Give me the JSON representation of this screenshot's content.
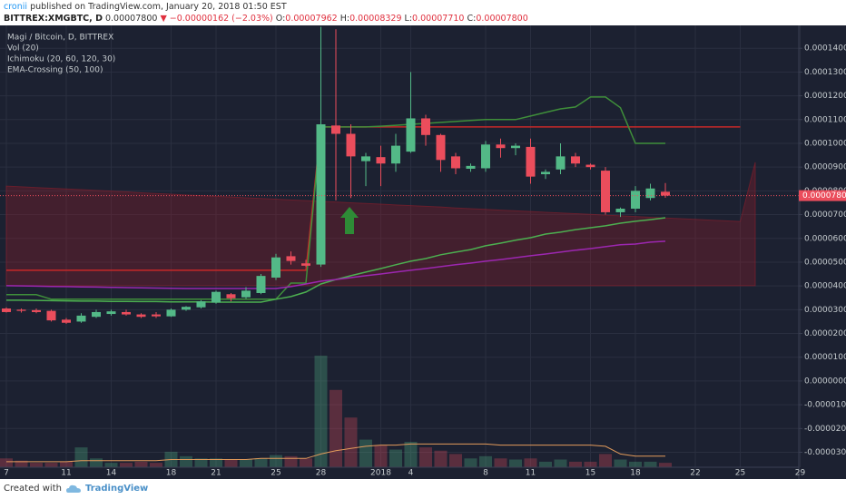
{
  "header": {
    "author": "cronii",
    "published": "published on TradingView.com, January 20, 2018 01:50 EST",
    "symbol": "BITTREX:XMGBTC, D",
    "last": "0.00007800",
    "arrow": "▼",
    "change": "−0.00000162 (−2.03%)",
    "ohlc": [
      {
        "label": "O:",
        "value": "0.00007962"
      },
      {
        "label": "H:",
        "value": "0.00008329"
      },
      {
        "label": "L:",
        "value": "0.00007710"
      },
      {
        "label": "C:",
        "value": "0.00007800"
      }
    ]
  },
  "chart_data": {
    "type": "candlestick",
    "title": "Magi / Bitcoin, D, BITTREX",
    "indicators": [
      "Vol (20)",
      "Ichimoku (20, 60, 120, 30)",
      "EMA-Crossing (50, 100)"
    ],
    "categories": [
      "7",
      null,
      null,
      null,
      "11",
      null,
      null,
      "14",
      null,
      null,
      null,
      "18",
      null,
      null,
      "21",
      null,
      null,
      null,
      "25",
      null,
      null,
      "28",
      null,
      null,
      null,
      "2018",
      null,
      "4",
      null,
      null,
      null,
      null,
      "8",
      null,
      null,
      "11",
      null,
      null,
      null,
      "15",
      null,
      null,
      "18",
      null,
      null,
      null,
      "22",
      null,
      null,
      "25",
      null,
      null,
      null,
      "29"
    ],
    "open": [
      3.05e-05,
      3e-05,
      2.98e-05,
      2.95e-05,
      2.58e-05,
      2.5e-05,
      2.7e-05,
      2.82e-05,
      2.9e-05,
      2.8e-05,
      2.8e-05,
      2.72e-05,
      3e-05,
      3.1e-05,
      3.3e-05,
      3.65e-05,
      3.52e-05,
      3.7e-05,
      4.35e-05,
      5.25e-05,
      4.95e-05,
      4.9e-05,
      0.0001075,
      0.000104,
      9.25e-05,
      9.42e-05,
      9.15e-05,
      9.65e-05,
      0.0001105,
      0.0001035,
      9.45e-05,
      8.93e-05,
      8.95e-05,
      9.95e-05,
      9.8e-05,
      9.85e-05,
      8.7e-05,
      8.9e-05,
      9.45e-05,
      9.1e-05,
      8.85e-05,
      7.1e-05,
      7.25e-05,
      7.7e-05,
      7.962e-05,
      null,
      null,
      null,
      null,
      null,
      null,
      null,
      null,
      null
    ],
    "high": [
      3.1e-05,
      3.05e-05,
      3.05e-05,
      3e-05,
      2.65e-05,
      2.85e-05,
      3e-05,
      3e-05,
      3e-05,
      2.85e-05,
      2.9e-05,
      3.05e-05,
      3.15e-05,
      3.4e-05,
      3.8e-05,
      3.7e-05,
      3.95e-05,
      4.5e-05,
      5.35e-05,
      5.45e-05,
      5.1e-05,
      0.000149,
      0.000148,
      0.000108,
      9.6e-05,
      9.9e-05,
      0.000104,
      0.00013,
      0.000112,
      0.000104,
      9.6e-05,
      9.15e-05,
      0.000101,
      0.000102,
      0.0001,
      0.000102,
      8.9e-05,
      0.0001,
      9.6e-05,
      9.15e-05,
      9e-05,
      7.3e-05,
      8.2e-05,
      8.3e-05,
      8.329e-05,
      null,
      null,
      null,
      null,
      null,
      null,
      null,
      null,
      null
    ],
    "low": [
      2.88e-05,
      2.88e-05,
      2.85e-05,
      2.5e-05,
      2.4e-05,
      2.45e-05,
      2.65e-05,
      2.75e-05,
      2.75e-05,
      2.65e-05,
      2.65e-05,
      2.7e-05,
      2.95e-05,
      3.05e-05,
      3.25e-05,
      3.35e-05,
      3.45e-05,
      3.65e-05,
      4.25e-05,
      4.9e-05,
      4.8e-05,
      4.8e-05,
      7.6e-05,
      7.7e-05,
      8.2e-05,
      8.2e-05,
      8.8e-05,
      9.6e-05,
      9.9e-05,
      8.8e-05,
      8.7e-05,
      8.8e-05,
      8.8e-05,
      9.4e-05,
      9.5e-05,
      8.3e-05,
      8.5e-05,
      8.7e-05,
      9e-05,
      8.9e-05,
      7e-05,
      6.9e-05,
      7.1e-05,
      7.6e-05,
      7.71e-05,
      null,
      null,
      null,
      null,
      null,
      null,
      null,
      null,
      null
    ],
    "close": [
      2.9e-05,
      2.95e-05,
      2.9e-05,
      2.55e-05,
      2.45e-05,
      2.75e-05,
      2.9e-05,
      2.93e-05,
      2.8e-05,
      2.7e-05,
      2.72e-05,
      3e-05,
      3.12e-05,
      3.35e-05,
      3.75e-05,
      3.48e-05,
      3.8e-05,
      4.42e-05,
      5.2e-05,
      5.05e-05,
      4.85e-05,
      0.000108,
      0.000104,
      9.45e-05,
      9.45e-05,
      9.15e-05,
      9.9e-05,
      0.0001105,
      0.0001035,
      9.3e-05,
      8.95e-05,
      9.05e-05,
      9.95e-05,
      9.8e-05,
      9.9e-05,
      8.6e-05,
      8.8e-05,
      9.45e-05,
      9.15e-05,
      9e-05,
      7.1e-05,
      7.25e-05,
      8e-05,
      8.1e-05,
      7.8e-05,
      null,
      null,
      null,
      null,
      null,
      null,
      null,
      null,
      null
    ],
    "up_color": "#53b987",
    "down_color": "#eb4d5c",
    "lines": [
      {
        "color": "#c62828",
        "values": [
          4.66e-05,
          4.66e-05,
          4.66e-05,
          4.66e-05,
          4.66e-05,
          4.66e-05,
          4.66e-05,
          4.66e-05,
          4.66e-05,
          4.66e-05,
          4.66e-05,
          4.66e-05,
          4.66e-05,
          4.66e-05,
          4.66e-05,
          4.66e-05,
          4.66e-05,
          4.66e-05,
          4.66e-05,
          4.66e-05,
          4.66e-05,
          0.0001069,
          0.0001069,
          0.0001069,
          0.0001069,
          0.0001069,
          0.0001069,
          0.0001069,
          0.0001069,
          0.0001069,
          0.0001069,
          0.0001069,
          0.0001069,
          0.0001069,
          0.0001069,
          0.0001069,
          0.0001069,
          0.0001069,
          0.0001069,
          0.0001069,
          0.0001069,
          0.0001069,
          0.0001069,
          0.0001069,
          0.0001069,
          0.0001069,
          0.0001069,
          0.0001069,
          0.0001069,
          0.0001069,
          null,
          null,
          null,
          null
        ]
      },
      {
        "color": "#3f8f3a",
        "values": [
          3.63e-05,
          3.63e-05,
          3.63e-05,
          3.44e-05,
          3.44e-05,
          3.44e-05,
          3.44e-05,
          3.44e-05,
          3.44e-05,
          3.44e-05,
          3.44e-05,
          3.44e-05,
          3.44e-05,
          3.44e-05,
          3.44e-05,
          3.44e-05,
          3.44e-05,
          3.44e-05,
          3.44e-05,
          4.12e-05,
          4.12e-05,
          0.0001069,
          0.0001069,
          0.0001069,
          0.0001069,
          0.0001072,
          0.0001076,
          0.000108,
          0.0001084,
          0.0001088,
          0.0001092,
          0.0001096,
          0.00011,
          0.00011,
          0.00011,
          0.0001115,
          0.000113,
          0.0001145,
          0.0001153,
          0.0001195,
          0.0001195,
          0.000115,
          0.0001,
          0.0001,
          0.0001,
          null,
          null,
          null,
          null,
          null,
          null,
          null,
          null,
          null
        ]
      },
      {
        "color": "#4caf50",
        "values": [
          3.4e-05,
          3.4e-05,
          3.39e-05,
          3.38e-05,
          3.37e-05,
          3.36e-05,
          3.36e-05,
          3.35e-05,
          3.35e-05,
          3.34e-05,
          3.34e-05,
          3.33e-05,
          3.33e-05,
          3.33e-05,
          3.32e-05,
          3.32e-05,
          3.32e-05,
          3.32e-05,
          3.44e-05,
          3.55e-05,
          3.74e-05,
          4.08e-05,
          4.27e-05,
          4.43e-05,
          4.58e-05,
          4.73e-05,
          4.89e-05,
          5.04e-05,
          5.15e-05,
          5.31e-05,
          5.42e-05,
          5.53e-05,
          5.69e-05,
          5.8e-05,
          5.92e-05,
          6.03e-05,
          6.18e-05,
          6.26e-05,
          6.37e-05,
          6.45e-05,
          6.53e-05,
          6.64e-05,
          6.72e-05,
          6.79e-05,
          6.87e-05,
          null,
          null,
          null,
          null,
          null,
          null,
          null,
          null,
          null
        ]
      },
      {
        "color": "#9c27b0",
        "values": [
          4.01e-05,
          4e-05,
          3.99e-05,
          3.98e-05,
          3.97e-05,
          3.96e-05,
          3.95e-05,
          3.94e-05,
          3.93e-05,
          3.92e-05,
          3.91e-05,
          3.9e-05,
          3.89e-05,
          3.89e-05,
          3.89e-05,
          3.89e-05,
          3.89e-05,
          3.89e-05,
          3.89e-05,
          3.97e-05,
          4.08e-05,
          4.2e-05,
          4.27e-05,
          4.35e-05,
          4.43e-05,
          4.5e-05,
          4.58e-05,
          4.66e-05,
          4.73e-05,
          4.81e-05,
          4.89e-05,
          4.96e-05,
          5.04e-05,
          5.11e-05,
          5.19e-05,
          5.27e-05,
          5.34e-05,
          5.42e-05,
          5.5e-05,
          5.57e-05,
          5.65e-05,
          5.73e-05,
          5.76e-05,
          5.84e-05,
          5.88e-05,
          null,
          null,
          null,
          null,
          null,
          null,
          null,
          null,
          null
        ]
      }
    ],
    "cloud": {
      "color": "#8c1e2c",
      "span_a": [
        8.2e-05,
        8.17e-05,
        8.14e-05,
        8.11e-05,
        8.08e-05,
        8.05e-05,
        8.02e-05,
        7.99e-05,
        7.96e-05,
        7.92e-05,
        7.89e-05,
        7.86e-05,
        7.83e-05,
        7.8e-05,
        7.77e-05,
        7.74e-05,
        7.71e-05,
        7.68e-05,
        7.65e-05,
        7.62e-05,
        7.59e-05,
        7.56e-05,
        7.53e-05,
        7.5e-05,
        7.47e-05,
        7.44e-05,
        7.41e-05,
        7.38e-05,
        7.35e-05,
        7.32e-05,
        7.28e-05,
        7.25e-05,
        7.22e-05,
        7.19e-05,
        7.16e-05,
        7.13e-05,
        7.1e-05,
        7.07e-05,
        7.04e-05,
        7.01e-05,
        6.98e-05,
        6.95e-05,
        6.92e-05,
        6.89e-05,
        6.86e-05,
        6.83e-05,
        6.8e-05,
        6.77e-05,
        6.74e-05,
        6.71e-05,
        9.2e-05,
        null,
        null,
        null
      ],
      "span_b": [
        4.01e-05,
        4.01e-05,
        4.01e-05,
        4.01e-05,
        4.01e-05,
        4.01e-05,
        4.01e-05,
        4.01e-05,
        4.01e-05,
        4.01e-05,
        4.01e-05,
        4.01e-05,
        4.01e-05,
        4.01e-05,
        4.01e-05,
        4.01e-05,
        4.01e-05,
        4.01e-05,
        4.01e-05,
        4.01e-05,
        4.01e-05,
        4.01e-05,
        4.01e-05,
        4.01e-05,
        4.01e-05,
        4.01e-05,
        4.01e-05,
        4.01e-05,
        4.01e-05,
        4.01e-05,
        4.01e-05,
        4.01e-05,
        4.01e-05,
        4.01e-05,
        4.01e-05,
        4.01e-05,
        4.01e-05,
        4.01e-05,
        4.01e-05,
        4.01e-05,
        4.01e-05,
        4.01e-05,
        4.01e-05,
        4.01e-05,
        4.01e-05,
        4.01e-05,
        4.01e-05,
        4.01e-05,
        4.01e-05,
        4.01e-05,
        4.01e-05,
        null,
        null,
        null
      ]
    },
    "volume": {
      "ylim": [
        0,
        400
      ],
      "ma_color": "#e39b5b",
      "values": [
        8,
        6,
        4,
        4,
        5,
        18,
        8,
        4,
        4,
        5,
        4,
        14,
        10,
        8,
        8,
        7,
        7,
        8,
        11,
        10,
        8,
        101,
        70,
        45,
        25,
        20,
        16,
        23,
        18,
        15,
        12,
        8,
        10,
        8,
        7,
        8,
        5,
        7,
        5,
        5,
        12,
        7,
        5,
        5,
        4,
        null,
        null,
        null,
        null,
        null,
        null,
        null,
        null,
        null
      ],
      "ma": [
        5,
        5,
        5,
        5,
        5,
        6,
        6,
        6,
        6,
        6,
        6,
        7,
        7,
        7,
        7,
        7,
        7,
        8,
        8,
        8,
        8,
        12,
        15,
        17,
        19,
        20,
        20,
        21,
        21,
        21,
        21,
        21,
        21,
        20,
        20,
        20,
        20,
        20,
        20,
        20,
        19,
        12,
        10,
        10,
        10,
        null,
        null,
        null,
        null,
        null,
        null,
        null,
        null,
        null
      ]
    },
    "last_price": {
      "value": 7.8e-05,
      "label": "0.00007800"
    },
    "ylim": [
      -3.63e-05,
      0.00014962
    ],
    "yticks": [
      {
        "value": 0.00014,
        "label": "0.00014000"
      },
      {
        "value": 0.00013,
        "label": "0.00013000"
      },
      {
        "value": 0.00012,
        "label": "0.00012000"
      },
      {
        "value": 0.00011,
        "label": "0.00011000"
      },
      {
        "value": 0.0001,
        "label": "0.00010000"
      },
      {
        "value": 9e-05,
        "label": "0.00009000"
      },
      {
        "value": 8e-05,
        "label": "0.00008000"
      },
      {
        "value": 7e-05,
        "label": "0.00007000"
      },
      {
        "value": 6e-05,
        "label": "0.00006000"
      },
      {
        "value": 5e-05,
        "label": "0.00005000"
      },
      {
        "value": 4e-05,
        "label": "0.00004000"
      },
      {
        "value": 3e-05,
        "label": "0.00003000"
      },
      {
        "value": 2e-05,
        "label": "0.00002000"
      },
      {
        "value": 1e-05,
        "label": "0.00001000"
      },
      {
        "value": 0,
        "label": "0.00000000"
      },
      {
        "value": -1e-05,
        "label": "-0.00001000"
      },
      {
        "value": -2e-05,
        "label": "-0.00002000"
      },
      {
        "value": -3e-05,
        "label": "-0.00003000"
      }
    ],
    "grid": true
  },
  "footer": {
    "created": "Created with",
    "brand": "TradingView"
  }
}
